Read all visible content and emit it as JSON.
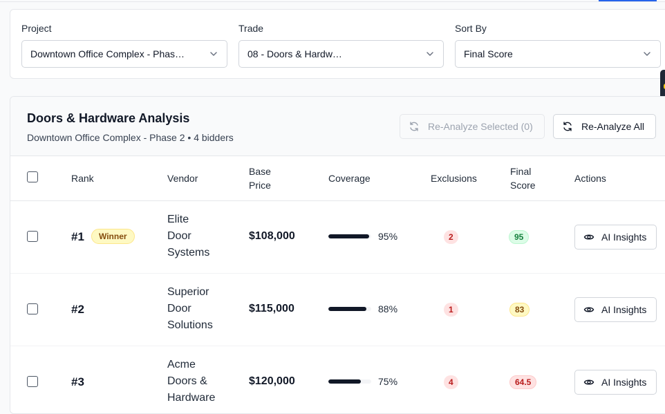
{
  "filters": {
    "project": {
      "label": "Project",
      "value": "Downtown Office Complex - Phas…"
    },
    "trade": {
      "label": "Trade",
      "value": "08 - Doors & Hardw…"
    },
    "sort": {
      "label": "Sort By",
      "value": "Final Score"
    }
  },
  "analysis": {
    "title": "Doors & Hardware Analysis",
    "subtitle": "Downtown Office Complex - Phase 2 • 4 bidders",
    "reanalyze_selected_label": "Re-Analyze Selected (0)",
    "reanalyze_all_label": "Re-Analyze All"
  },
  "table": {
    "headers": {
      "rank": "Rank",
      "vendor": "Vendor",
      "base_price_1": "Base",
      "base_price_2": "Price",
      "coverage": "Coverage",
      "exclusions": "Exclusions",
      "final_score_1": "Final",
      "final_score_2": "Score",
      "actions": "Actions"
    },
    "rows": [
      {
        "rank": "#1",
        "badge": "Winner",
        "vendor_lines": [
          "Elite",
          "Door",
          "Systems"
        ],
        "price": "$108,000",
        "coverage": 95,
        "coverage_label": "95%",
        "exclusions": "2",
        "score": "95",
        "score_level": "green",
        "action": "AI Insights"
      },
      {
        "rank": "#2",
        "badge": "",
        "vendor_lines": [
          "Superior",
          "Door",
          "Solutions"
        ],
        "price": "$115,000",
        "coverage": 88,
        "coverage_label": "88%",
        "exclusions": "1",
        "score": "83",
        "score_level": "yellow",
        "action": "AI Insights"
      },
      {
        "rank": "#3",
        "badge": "",
        "vendor_lines": [
          "Acme",
          "Doors &",
          "Hardware"
        ],
        "price": "$120,000",
        "coverage": 75,
        "coverage_label": "75%",
        "exclusions": "4",
        "score": "64.5",
        "score_level": "red",
        "action": "AI Insights"
      }
    ]
  },
  "icons": {
    "chevron": "chevron-down-icon",
    "refresh": "refresh-icon",
    "eye": "eye-icon"
  },
  "colors": {
    "accent": "#2563eb",
    "score_green": "#15803d",
    "score_yellow": "#854d0e",
    "score_red": "#b91c1c"
  }
}
